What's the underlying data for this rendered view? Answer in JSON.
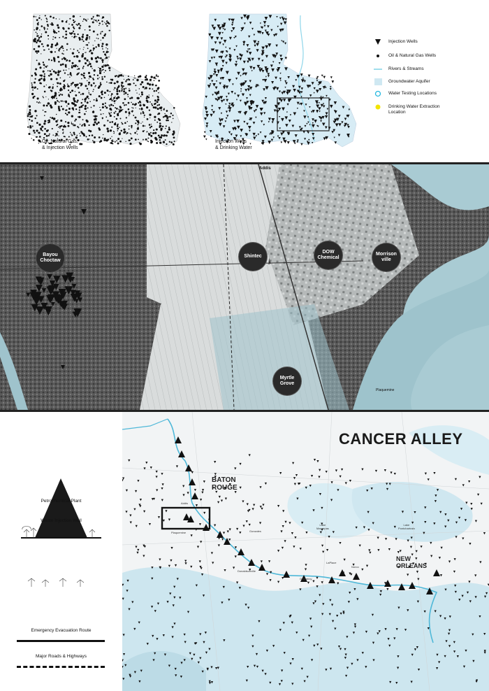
{
  "top": {
    "map1_caption_line1": "Oil, Natural Gas,",
    "map1_caption_line2": "& Injection Wells",
    "map2_caption_line1": "Injection Wells",
    "map2_caption_line2": "& Drinking Water",
    "legend": [
      {
        "label": "Injection Wells",
        "icon": "triangle-down"
      },
      {
        "label": "Oil & Natural Gas Wells",
        "icon": "dot"
      },
      {
        "label": "Rivers & Streams",
        "icon": "line",
        "color": "#7fd3e6"
      },
      {
        "label": "Groundwater Aquifer",
        "icon": "square",
        "color": "#cfe8f2"
      },
      {
        "label": "Water Testing Locations",
        "icon": "ring",
        "color": "#27b9e0"
      },
      {
        "label": "Drinking Water Extraction",
        "label2": "Location",
        "icon": "yellow-dot",
        "color": "#f2e400"
      }
    ]
  },
  "aerial": {
    "place_addis": "Addis",
    "place_plaquemine": "Plaquemine",
    "bubbles": [
      {
        "line1": "Bayou",
        "line2": "Choctaw"
      },
      {
        "line1": "Shintec",
        "line2": ""
      },
      {
        "line1": "DOW",
        "line2": "Chemical"
      },
      {
        "line1": "Morrison",
        "line2": "ville"
      },
      {
        "line1": "Myrtle",
        "line2": "Grove"
      }
    ]
  },
  "bottom": {
    "title": "CANCER ALLEY",
    "legend_petro": "Petrochemical Plant",
    "legend_waste": "Waste Injection Well",
    "legend_evac": "Emergency Evacuation Route",
    "legend_roads": "Major Roads & Highways",
    "city_baton_1": "BATON",
    "city_baton_2": "ROUGE",
    "city_no_1": "NEW",
    "city_no_2": "ORLEANS",
    "lake1_1": "Lake",
    "lake1_2": "Maurepas",
    "lake2_1": "Lake",
    "lake2_2": "Pontchartrain",
    "towns": [
      "Addis",
      "Plaquemine",
      "Gonzales",
      "Donaldsonville",
      "Gramercy",
      "LaPlace",
      "Norco"
    ]
  },
  "colors": {
    "river": "#4fb8d8",
    "water": "#cde6ef",
    "dark": "#1a1a1a"
  }
}
